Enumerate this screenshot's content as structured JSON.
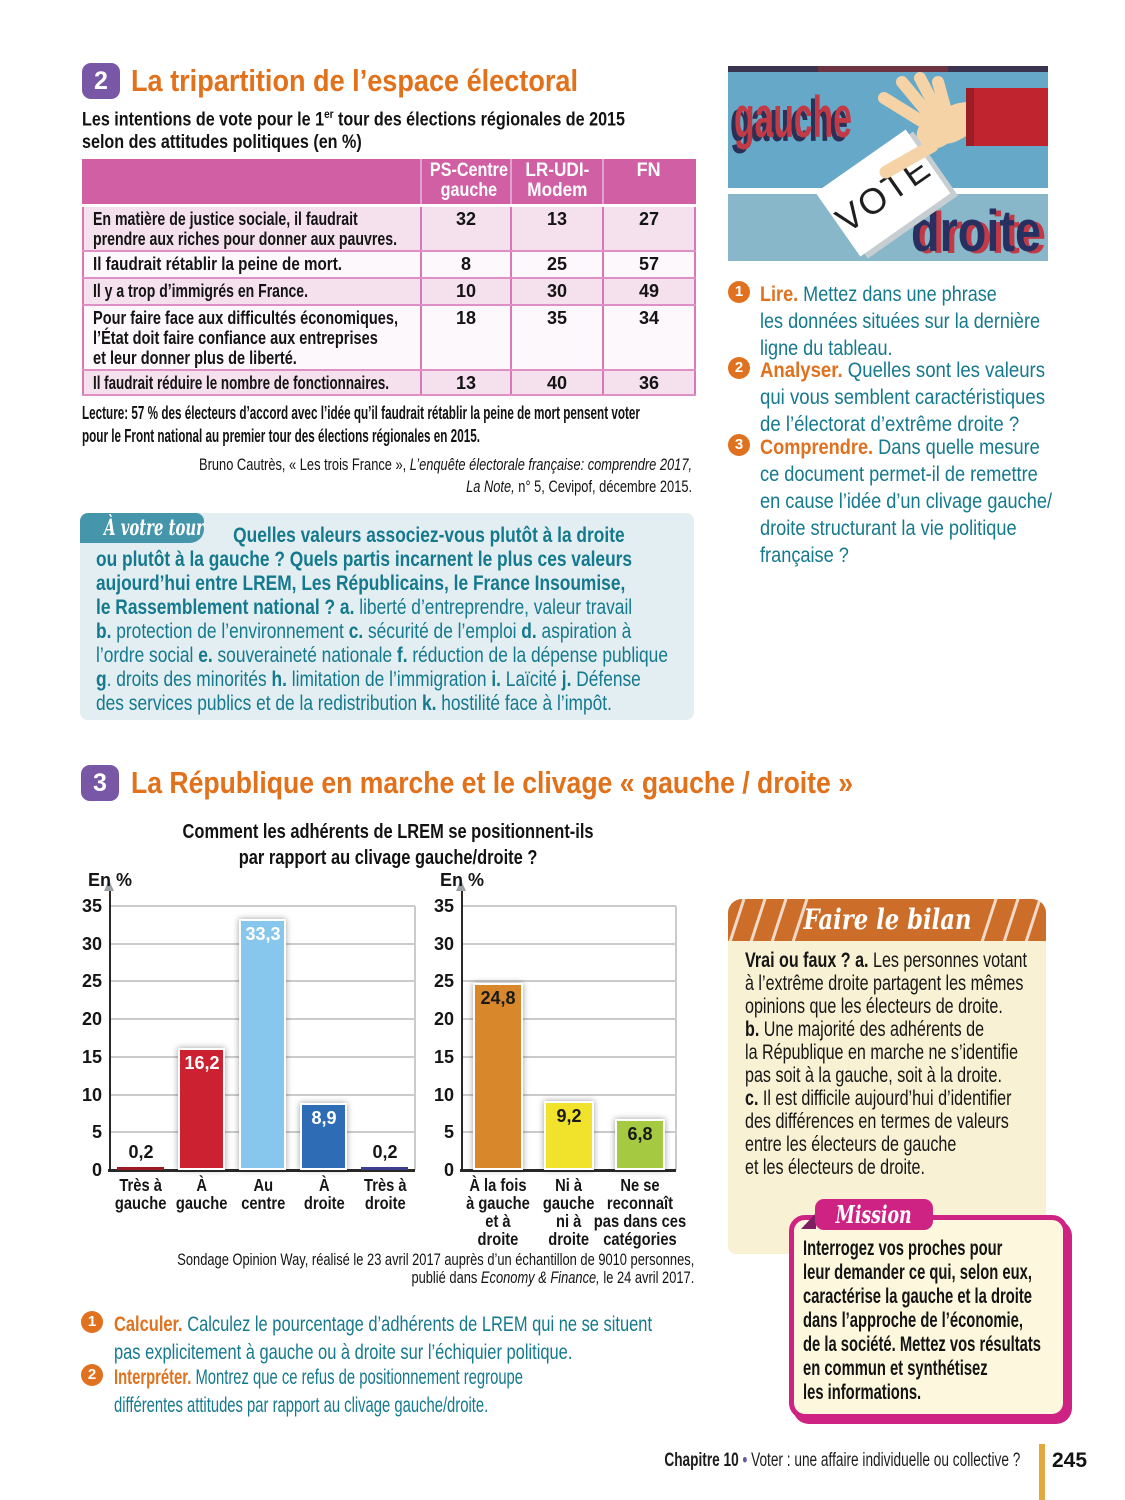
{
  "colors": {
    "section_badge_purple": "#7857a6",
    "title_orange": "#e2711c",
    "teal_text": "#15798e",
    "table_header_pink": "#d05fa4",
    "table_row_pink": "#f5e1ee",
    "bilan_header_orange": "#cc6d29",
    "bilan_bg_cream": "#f8f1d3",
    "mission_magenta": "#ce2383",
    "footer_gold": "#e2a93c"
  },
  "doc2": {
    "badge": "2",
    "title": "La tripartition de l’espace électoral",
    "subtitle": [
      {
        "t": "Les intentions de vote pour le 1",
        "s": "b"
      },
      {
        "t": "er",
        "s": "ssup"
      },
      {
        "t": " tour des élections régionales de 2015",
        "s": "b"
      },
      {
        "br": true
      },
      {
        "t": "selon des attitudes politiques (en %)",
        "s": "b"
      }
    ],
    "table": {
      "headers": [
        [
          "PS-Centre",
          "gauche"
        ],
        [
          "LR-UDI-",
          "Modem"
        ],
        [
          "FN"
        ]
      ],
      "rows": [
        {
          "q": [
            "En matière de justice sociale, il faudrait",
            "prendre aux riches pour donner aux pauvres."
          ],
          "v": [
            "32",
            "13",
            "27"
          ]
        },
        {
          "q": [
            "Il faudrait rétablir la peine de mort."
          ],
          "v": [
            "8",
            "25",
            "57"
          ]
        },
        {
          "q": [
            "Il y a trop d’immigrés en France."
          ],
          "v": [
            "10",
            "30",
            "49"
          ]
        },
        {
          "q": [
            "Pour faire face aux difficultés économiques,",
            "l’État doit faire confiance aux entreprises",
            "et leur donner plus de liberté."
          ],
          "v": [
            "18",
            "35",
            "34"
          ]
        },
        {
          "q": [
            "Il faudrait réduire le nombre de fonctionnaires."
          ],
          "v": [
            "13",
            "40",
            "36"
          ]
        }
      ]
    },
    "lecture": [
      "Lecture: 57 % des électeurs d’accord avec l’idée qu’il faudrait rétablir la peine de mort pensent voter",
      "pour le Front national au premier tour des élections régionales en 2015."
    ],
    "source": [
      {
        "t": "Bruno Cautrès, « Les trois France », ",
        "s": "n"
      },
      {
        "t": "L’enquête électorale française: comprendre 2017,",
        "s": "i"
      },
      {
        "br": true
      },
      {
        "t": "La Note,",
        "s": "i"
      },
      {
        "t": " n° 5, Cevipof, décembre 2015.",
        "s": "n"
      }
    ],
    "avotretour": {
      "tab": "À votre tour",
      "text": [
        {
          "t": "",
          "s": "ind"
        },
        {
          "t": "Quelles valeurs associez-vous plutôt à la droite",
          "s": "b"
        },
        {
          "br": true
        },
        {
          "t": "ou plutôt à la gauche ? Quels partis incarnent le plus ces valeurs",
          "s": "b"
        },
        {
          "br": true
        },
        {
          "t": "aujourd’hui entre LREM, Les Républicains, le France Insoumise,",
          "s": "b"
        },
        {
          "br": true
        },
        {
          "t": "le Rassemblement national ? a.",
          "s": "b"
        },
        {
          "t": " liberté d’entreprendre, valeur travail",
          "s": "n"
        },
        {
          "br": true
        },
        {
          "t": "b.",
          "s": "b"
        },
        {
          "t": " protection de l’environnement ",
          "s": "n"
        },
        {
          "t": "c.",
          "s": "b"
        },
        {
          "t": " sécurité de l’emploi ",
          "s": "n"
        },
        {
          "t": "d.",
          "s": "b"
        },
        {
          "t": " aspiration à",
          "s": "n"
        },
        {
          "br": true
        },
        {
          "t": "l’ordre social ",
          "s": "n"
        },
        {
          "t": "e.",
          "s": "b"
        },
        {
          "t": " souveraineté nationale ",
          "s": "n"
        },
        {
          "t": "f.",
          "s": "b"
        },
        {
          "t": " réduction de la dépense publique",
          "s": "n"
        },
        {
          "br": true
        },
        {
          "t": "g",
          "s": "b"
        },
        {
          "t": ". droits des minorités ",
          "s": "n"
        },
        {
          "t": "h.",
          "s": "b"
        },
        {
          "t": " limitation de l’immigration ",
          "s": "n"
        },
        {
          "t": "i.",
          "s": "b"
        },
        {
          "t": " Laïcité ",
          "s": "n"
        },
        {
          "t": "j.",
          "s": "b"
        },
        {
          "t": " Défense",
          "s": "n"
        },
        {
          "br": true
        },
        {
          "t": "des services publics et de la redistribution ",
          "s": "n"
        },
        {
          "t": "k.",
          "s": "b"
        },
        {
          "t": " hostilité face à l’impôt.",
          "s": "n"
        }
      ]
    },
    "questions": [
      {
        "num": "1",
        "segs": [
          {
            "t": "Lire.",
            "s": "slead"
          },
          {
            "t": " Mettez dans une phrase",
            "s": "n"
          },
          {
            "br": true
          },
          {
            "t": "les données situées sur la dernière",
            "s": "n"
          },
          {
            "br": true
          },
          {
            "t": "ligne du tableau.",
            "s": "n"
          }
        ]
      },
      {
        "num": "2",
        "segs": [
          {
            "t": "Analyser.",
            "s": "slead"
          },
          {
            "t": " Quelles sont les valeurs",
            "s": "n"
          },
          {
            "br": true
          },
          {
            "t": "qui vous semblent caractéristiques",
            "s": "n"
          },
          {
            "br": true
          },
          {
            "t": "de l’électorat d’extrême droite ?",
            "s": "n"
          }
        ]
      },
      {
        "num": "3",
        "segs": [
          {
            "t": "Comprendre.",
            "s": "slead"
          },
          {
            "t": " Dans quelle mesure",
            "s": "n"
          },
          {
            "br": true
          },
          {
            "t": "ce document permet-il de remettre",
            "s": "n"
          },
          {
            "br": true
          },
          {
            "t": "en cause l’idée d’un clivage gauche/",
            "s": "n"
          },
          {
            "br": true
          },
          {
            "t": "droite structurant la vie politique",
            "s": "n"
          },
          {
            "br": true
          },
          {
            "t": "française ?",
            "s": "n"
          }
        ]
      }
    ]
  },
  "illustration": {
    "left_word": "gauche",
    "right_word": "droite",
    "ballot_word": "VOTE"
  },
  "doc3": {
    "badge": "3",
    "title": "La République en marche et le clivage « gauche / droite »",
    "suptitle": [
      "Comment les adhérents de LREM se positionnent-ils",
      "par rapport au clivage gauche/droite ?"
    ],
    "source": [
      {
        "t": "Sondage Opinion Way, réalisé le 23 avril 2017 auprès d’un échantillon de 9010 personnes,",
        "s": "n"
      },
      {
        "br": true
      },
      {
        "t": "publié dans ",
        "s": "n"
      },
      {
        "t": "Economy & Finance,",
        "s": "i"
      },
      {
        "t": " le 24 avril 2017.",
        "s": "n"
      }
    ],
    "questions": [
      {
        "num": "1",
        "segs": [
          {
            "t": "Calculer.",
            "s": "slead"
          },
          {
            "t": " Calculez le pourcentage d’adhérents de LREM qui ne se situent",
            "s": "n"
          },
          {
            "br": true
          },
          {
            "t": "pas explicitement à gauche ou à droite sur l’échiquier politique.",
            "s": "n"
          }
        ]
      },
      {
        "num": "2",
        "segs": [
          {
            "t": "Interpréter.",
            "s": "slead"
          },
          {
            "t": " Montrez que ce refus de positionnement regroupe",
            "s": "n"
          },
          {
            "br": true
          },
          {
            "t": "différentes attitudes par rapport au clivage gauche/droite.",
            "s": "n"
          }
        ]
      }
    ]
  },
  "chart_data": [
    {
      "type": "bar",
      "title": "Comment les adhérents de LREM se positionnent-ils par rapport au clivage gauche/droite ?",
      "ylabel": "En %",
      "ylim": [
        0,
        35
      ],
      "ytick_step": 5,
      "grid": true,
      "categories": [
        "Très à gauche",
        "À gauche",
        "Au centre",
        "À droite",
        "Très à droite"
      ],
      "categories_lines": [
        [
          "Très à",
          "gauche"
        ],
        [
          "À",
          "gauche"
        ],
        [
          "Au",
          "centre"
        ],
        [
          "À",
          "droite"
        ],
        [
          "Très à",
          "droite"
        ]
      ],
      "values": [
        0.2,
        16.2,
        33.3,
        8.9,
        0.2
      ],
      "value_labels": [
        "0,2",
        "16,2",
        "33,3",
        "8,9",
        "0,2"
      ],
      "colors": [
        "#9c1b24",
        "#cb2130",
        "#87c7ee",
        "#2e6cb5",
        "#3c3f90"
      ],
      "inside_label_color": "#ffffff"
    },
    {
      "type": "bar",
      "title": "Comment les adhérents de LREM se positionnent-ils par rapport au clivage gauche/droite ?",
      "ylabel": "En %",
      "ylim": [
        0,
        35
      ],
      "ytick_step": 5,
      "grid": true,
      "categories": [
        "À la fois à gauche et à droite",
        "Ni à gauche ni à droite",
        "Ne se reconnaît pas dans ces catégories"
      ],
      "categories_lines": [
        [
          "À la fois",
          "à gauche",
          "et à",
          "droite"
        ],
        [
          "Ni à",
          "gauche",
          "ni à",
          "droite"
        ],
        [
          "Ne se",
          "reconnaît",
          "pas dans ces",
          "catégories"
        ]
      ],
      "values": [
        24.8,
        9.2,
        6.8
      ],
      "value_labels": [
        "24,8",
        "9,2",
        "6,8"
      ],
      "colors": [
        "#d8882b",
        "#f1e32c",
        "#a5c940"
      ],
      "inside_label_color": "#1a1a1a"
    }
  ],
  "bilan": {
    "title": "Faire le bilan",
    "text": [
      {
        "t": "Vrai ou faux ? a.",
        "s": "b"
      },
      {
        "t": " Les personnes votant",
        "s": "n"
      },
      {
        "br": true
      },
      {
        "t": "à l’extrême droite partagent les mêmes",
        "s": "n"
      },
      {
        "br": true
      },
      {
        "t": "opinions que les électeurs de droite.",
        "s": "n"
      },
      {
        "br": true
      },
      {
        "t": "b.",
        "s": "b"
      },
      {
        "t": " Une majorité des adhérents de",
        "s": "n"
      },
      {
        "br": true
      },
      {
        "t": "la République en marche ne s’identifie",
        "s": "n"
      },
      {
        "br": true
      },
      {
        "t": "pas soit à la gauche, soit à la droite.",
        "s": "n"
      },
      {
        "br": true
      },
      {
        "t": "c.",
        "s": "b"
      },
      {
        "t": " Il est difficile aujourd’hui d’identifier",
        "s": "n"
      },
      {
        "br": true
      },
      {
        "t": "des différences en termes de valeurs",
        "s": "n"
      },
      {
        "br": true
      },
      {
        "t": "entre les électeurs de gauche",
        "s": "n"
      },
      {
        "br": true
      },
      {
        "t": "et les électeurs de droite.",
        "s": "n"
      }
    ]
  },
  "mission": {
    "title": "Mission",
    "text": [
      "Interrogez vos proches pour",
      "leur demander ce qui, selon eux,",
      "caractérise la gauche et la droite",
      "dans l’approche de l’économie,",
      "de la société. Mettez vos résultats",
      "en commun et synthétisez",
      "les informations."
    ]
  },
  "footer": {
    "segs": [
      {
        "t": "Chapitre 10",
        "s": "b"
      },
      {
        "t": " • ",
        "s": "sdot"
      },
      {
        "t": "Voter : une affaire individuelle ou collective ?",
        "s": "n"
      }
    ],
    "page": "245"
  }
}
